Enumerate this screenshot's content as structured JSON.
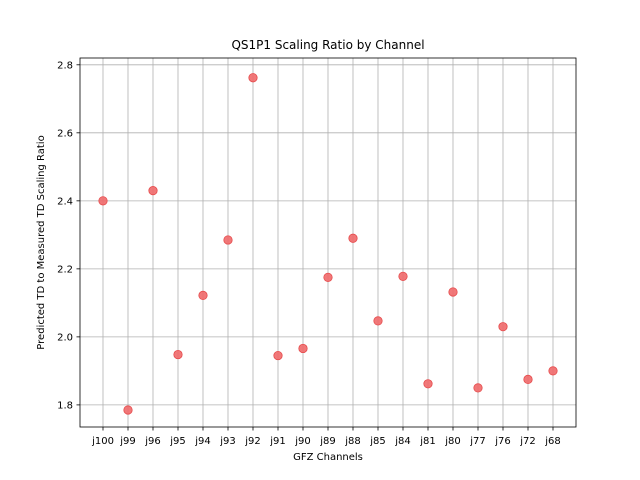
{
  "chart_data": {
    "type": "scatter",
    "title": "QS1P1 Scaling Ratio by Channel",
    "xlabel": "GFZ Channels",
    "ylabel": "Predicted TD to Measured TD Scaling Ratio",
    "categories": [
      "j100",
      "j99",
      "j96",
      "j95",
      "j94",
      "j93",
      "j92",
      "j91",
      "j90",
      "j89",
      "j88",
      "j85",
      "j84",
      "j81",
      "j80",
      "j77",
      "j76",
      "j72",
      "j68"
    ],
    "values": [
      2.4,
      1.785,
      2.43,
      1.948,
      2.122,
      2.285,
      2.762,
      1.945,
      1.966,
      2.175,
      2.29,
      2.047,
      2.178,
      1.862,
      2.132,
      1.85,
      2.03,
      1.875,
      1.9
    ],
    "ylim": [
      1.735,
      2.82
    ],
    "yticks": [
      "1.8",
      "2.0",
      "2.2",
      "2.4",
      "2.6",
      "2.8"
    ],
    "grid": true,
    "marker_color": "#f0696a",
    "marker_edge_color": "#e64c4d"
  }
}
